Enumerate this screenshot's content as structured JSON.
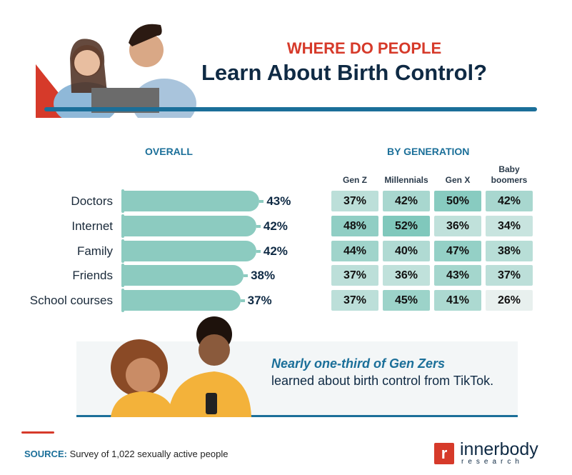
{
  "header": {
    "subtitle": "WHERE DO PEOPLE",
    "title": "Learn About Birth Control?"
  },
  "chart_data": [
    {
      "type": "bar",
      "title": "OVERALL",
      "categories": [
        "Doctors",
        "Internet",
        "Family",
        "Friends",
        "School courses"
      ],
      "values": [
        43,
        42,
        42,
        38,
        37
      ],
      "value_labels": [
        "43%",
        "42%",
        "42%",
        "38%",
        "37%"
      ],
      "color": "#8ccbc0"
    },
    {
      "type": "heatmap",
      "title": "BY GENERATION",
      "columns": [
        "Gen Z",
        "Millennials",
        "Gen X",
        "Baby boomers"
      ],
      "rows": [
        "Doctors",
        "Internet",
        "Family",
        "Friends",
        "School courses"
      ],
      "values": [
        [
          37,
          42,
          50,
          42
        ],
        [
          48,
          52,
          36,
          34
        ],
        [
          44,
          40,
          47,
          38
        ],
        [
          37,
          36,
          43,
          37
        ],
        [
          37,
          45,
          41,
          26
        ]
      ]
    }
  ],
  "callout": {
    "highlight": "Nearly one-third of Gen Zers",
    "text": "learned about birth control from TikTok."
  },
  "footer": {
    "source_label": "SOURCE:",
    "source_text": "Survey of 1,022 sexually active people",
    "logo_main": "innerbody",
    "logo_sub": "research"
  },
  "colors": {
    "accent_red": "#d63a2a",
    "navy": "#0f2a44",
    "blue": "#1b6f99",
    "teal": "#8ccbc0"
  }
}
